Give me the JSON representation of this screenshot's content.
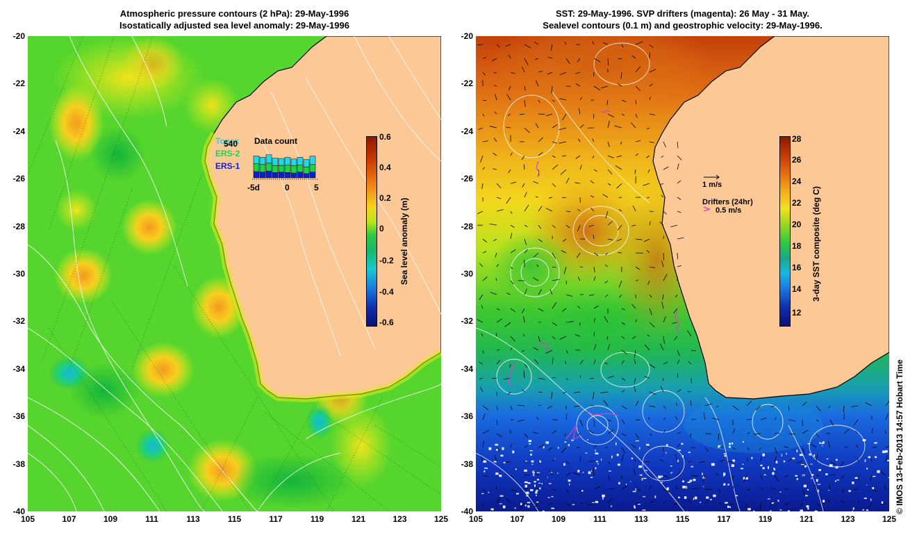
{
  "left": {
    "title_line1": "Atmospheric pressure contours (2 hPa): 29-May-1996",
    "title_line2": "Isostatically adjusted sea level anomaly: 29-May-1996",
    "colorbar_label": "Sea level anomaly (m)",
    "colorbar_ticks": [
      "0.6",
      "0.4",
      "0.2",
      "0",
      "-0.2",
      "-0.4",
      "-0.6"
    ],
    "legend": {
      "topex": "Topex",
      "ers2": "ERS-2",
      "ers1": "ERS-1",
      "count": "540",
      "title": "Data count",
      "x_ticks": [
        "-5d",
        "0",
        "5"
      ],
      "bars": [
        {
          "t": 0.65,
          "e2": 0.95,
          "e1": 1.0
        },
        {
          "t": 0.6,
          "e2": 0.9,
          "e1": 0.95
        },
        {
          "t": 0.7,
          "e2": 0.95,
          "e1": 1.1
        },
        {
          "t": 0.55,
          "e2": 0.85,
          "e1": 0.95
        },
        {
          "t": 0.6,
          "e2": 0.8,
          "e1": 0.9
        },
        {
          "t": 0.55,
          "e2": 0.9,
          "e1": 1.0
        },
        {
          "t": 0.5,
          "e2": 0.9,
          "e1": 0.85
        },
        {
          "t": 0.6,
          "e2": 0.85,
          "e1": 1.0
        },
        {
          "t": 0.45,
          "e2": 0.8,
          "e1": 0.95
        },
        {
          "t": 0.6,
          "e2": 0.9,
          "e1": 1.1
        }
      ]
    }
  },
  "right": {
    "title_line1": "SST: 29-May-1996. SVP drifters (magenta): 26 May - 31 May.",
    "title_line2": "Sealevel contours (0.1 m) and geostrophic velocity: 29-May-1996.",
    "colorbar_label": "3-day SST composite (deg C)",
    "colorbar_ticks": [
      "28",
      "26",
      "24",
      "22",
      "20",
      "18",
      "16",
      "14",
      "12"
    ],
    "vel_scale": "1 m/s",
    "drifters_label": "Drifters (24hr)",
    "drifters_scale": "0.5 m/s"
  },
  "axes": {
    "y_ticks": [
      "-20",
      "-22",
      "-24",
      "-26",
      "-28",
      "-30",
      "-32",
      "-34",
      "-36",
      "-38",
      "-40"
    ],
    "x_ticks": [
      "105",
      "107",
      "109",
      "111",
      "113",
      "115",
      "117",
      "119",
      "121",
      "123",
      "125"
    ]
  },
  "credit": "© IMOS 13-Feb-2013 14:57 Hobart Time",
  "colors": {
    "land": "#fbc896",
    "coast": "#000000",
    "drifter": "#d040d0"
  }
}
